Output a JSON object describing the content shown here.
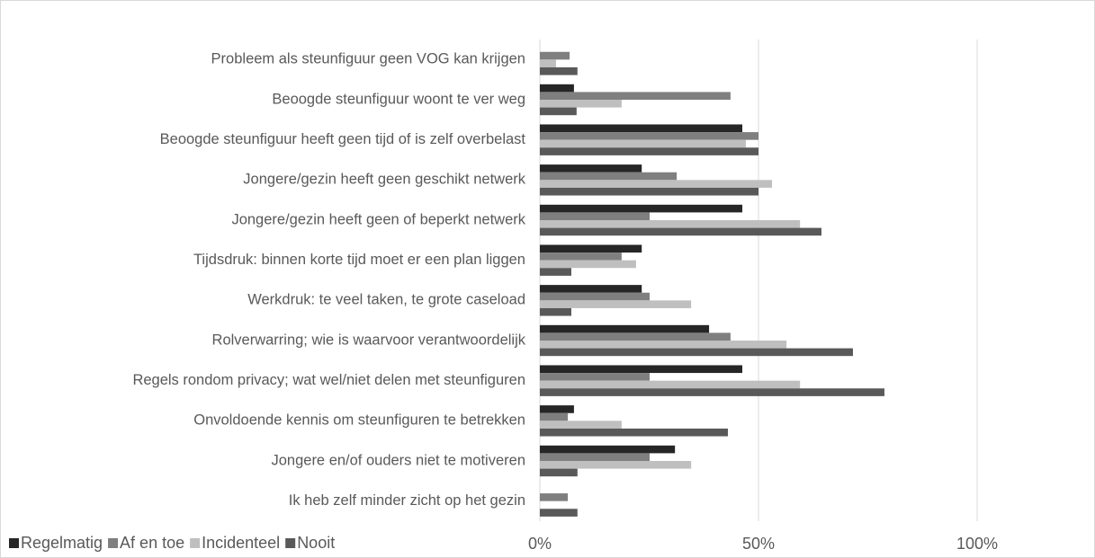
{
  "chart_data": {
    "type": "barh",
    "categories": [
      "Probleem als steunfiguur geen VOG kan krijgen",
      "Beoogde steunfiguur woont te ver weg",
      "Beoogde steunfiguur heeft geen tijd of is zelf overbelast",
      "Jongere/gezin heeft geen geschikt netwerk",
      "Jongere/gezin heeft geen of beperkt netwerk",
      "Tijdsdruk: binnen korte tijd moet er een plan liggen",
      "Werkdruk: te veel taken, te grote caseload",
      "Rolverwarring; wie is waarvoor verantwoordelijk",
      "Regels rondom privacy; wat wel/niet delen met steunfiguren",
      "Onvoldoende kennis om steunfiguren te betrekken",
      "Jongere en/of ouders niet te motiveren",
      "Ik heb zelf minder zicht op het gezin"
    ],
    "series": [
      {
        "name": "Regelmatig",
        "color": "#262626",
        "values": [
          0,
          7.8,
          46.3,
          23.3,
          46.3,
          23.3,
          23.3,
          38.7,
          46.3,
          7.8,
          30.9,
          0
        ]
      },
      {
        "name": "Af en toe",
        "color": "#7f7f7f",
        "values": [
          6.8,
          43.6,
          50,
          31.3,
          25.1,
          18.7,
          25.1,
          43.6,
          25.1,
          6.4,
          25.1,
          6.4
        ]
      },
      {
        "name": "Incidenteel",
        "color": "#bfbfbf",
        "values": [
          3.7,
          18.7,
          47.1,
          53.1,
          59.5,
          22,
          34.6,
          56.4,
          59.5,
          18.7,
          34.6,
          0
        ]
      },
      {
        "name": "Nooit",
        "color": "#595959",
        "values": [
          8.6,
          8.4,
          50,
          50,
          64.4,
          7.2,
          7.2,
          71.6,
          78.8,
          43,
          8.6,
          8.6
        ]
      }
    ],
    "xlim": [
      0,
      125
    ],
    "xticks": [
      {
        "value": 0,
        "label": "0%"
      },
      {
        "value": 50,
        "label": "50%"
      },
      {
        "value": 100,
        "label": "100%"
      }
    ],
    "grid": true,
    "legend": "bottom-left"
  }
}
